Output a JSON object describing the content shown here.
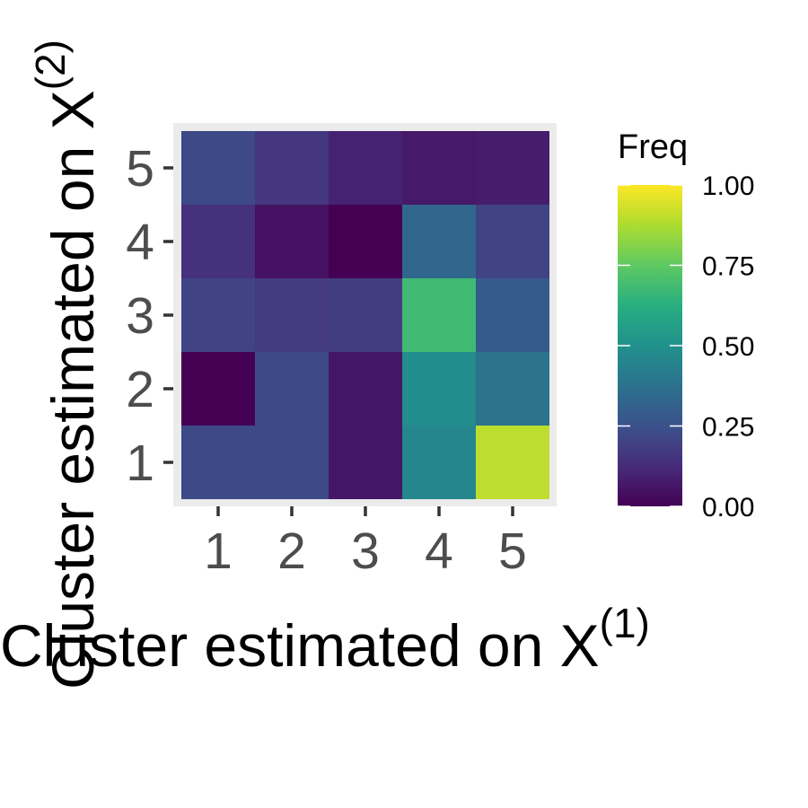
{
  "chart_data": {
    "type": "heatmap",
    "xlabel": "Cluster estimated on X",
    "xlabel_superscript": "(1)",
    "ylabel": "Cluster estimated on X",
    "ylabel_superscript": "(2)",
    "x_categories": [
      "1",
      "2",
      "3",
      "4",
      "5"
    ],
    "y_categories": [
      "1",
      "2",
      "3",
      "4",
      "5"
    ],
    "values": [
      [
        0.22,
        0.22,
        0.06,
        0.46,
        0.9
      ],
      [
        0.0,
        0.22,
        0.06,
        0.48,
        0.38
      ],
      [
        0.2,
        0.17,
        0.18,
        0.68,
        0.28
      ],
      [
        0.14,
        0.05,
        0.0,
        0.33,
        0.2
      ],
      [
        0.22,
        0.16,
        0.1,
        0.07,
        0.08
      ]
    ],
    "legend": {
      "title": "Freq",
      "ticks": [
        "0.00",
        "0.25",
        "0.50",
        "0.75",
        "1.00"
      ],
      "range": [
        0,
        1
      ],
      "colormap": "viridis",
      "position": "right"
    },
    "colors": {
      "panel_background": "#ebebeb",
      "axis_text": "#4d4d4d",
      "title_text": "#000000"
    }
  }
}
